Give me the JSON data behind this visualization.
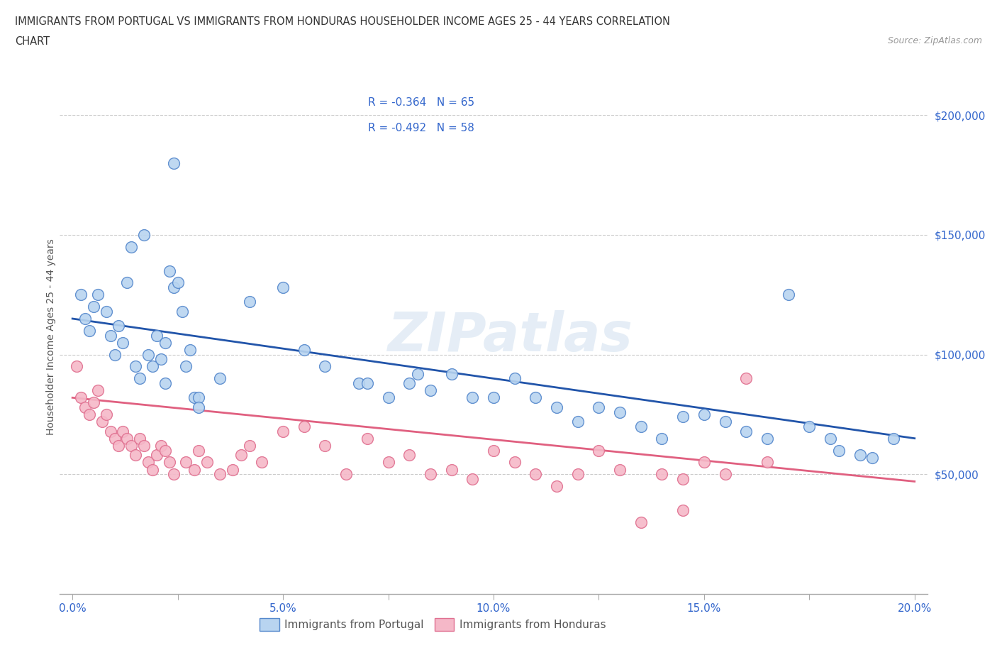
{
  "title_line1": "IMMIGRANTS FROM PORTUGAL VS IMMIGRANTS FROM HONDURAS HOUSEHOLDER INCOME AGES 25 - 44 YEARS CORRELATION",
  "title_line2": "CHART",
  "source": "Source: ZipAtlas.com",
  "ylabel": "Householder Income Ages 25 - 44 years",
  "ylim": [
    0,
    215000
  ],
  "xlim": [
    -0.3,
    20.3
  ],
  "yticks": [
    50000,
    100000,
    150000,
    200000
  ],
  "ytick_labels": [
    "$50,000",
    "$100,000",
    "$150,000",
    "$200,000"
  ],
  "xticks": [
    0.0,
    2.5,
    5.0,
    7.5,
    10.0,
    12.5,
    15.0,
    17.5,
    20.0
  ],
  "xtick_labels": [
    "0.0%",
    "",
    "5.0%",
    "",
    "10.0%",
    "",
    "15.0%",
    "",
    "20.0%"
  ],
  "portugal_color": "#b8d4f0",
  "portugal_edge_color": "#5588cc",
  "honduras_color": "#f5b8c8",
  "honduras_edge_color": "#e07090",
  "portugal_line_color": "#2255aa",
  "honduras_line_color": "#e06080",
  "R_portugal": -0.364,
  "N_portugal": 65,
  "R_honduras": -0.492,
  "N_honduras": 58,
  "legend_label_portugal": "Immigrants from Portugal",
  "legend_label_honduras": "Immigrants from Honduras",
  "watermark": "ZIPatlas",
  "port_line_y0": 115000,
  "port_line_y20": 65000,
  "hond_line_y0": 82000,
  "hond_line_y20": 47000,
  "portugal_x": [
    0.2,
    0.3,
    0.4,
    0.5,
    0.6,
    0.8,
    0.9,
    1.0,
    1.1,
    1.2,
    1.3,
    1.4,
    1.5,
    1.6,
    1.7,
    1.8,
    1.9,
    2.0,
    2.1,
    2.2,
    2.3,
    2.4,
    2.5,
    2.6,
    2.7,
    2.8,
    2.9,
    3.0,
    3.5,
    4.2,
    5.5,
    6.0,
    6.8,
    7.5,
    8.0,
    8.5,
    9.0,
    9.5,
    10.0,
    10.5,
    11.0,
    11.5,
    12.0,
    12.5,
    13.0,
    13.5,
    14.0,
    14.5,
    15.0,
    15.5,
    16.0,
    16.5,
    17.0,
    17.5,
    18.0,
    18.2,
    18.7,
    19.0,
    19.5,
    5.0,
    7.0,
    8.2,
    3.0,
    2.2,
    2.4
  ],
  "portugal_y": [
    125000,
    115000,
    110000,
    120000,
    125000,
    118000,
    108000,
    100000,
    112000,
    105000,
    130000,
    145000,
    95000,
    90000,
    150000,
    100000,
    95000,
    108000,
    98000,
    105000,
    135000,
    128000,
    130000,
    118000,
    95000,
    102000,
    82000,
    82000,
    90000,
    122000,
    102000,
    95000,
    88000,
    82000,
    88000,
    85000,
    92000,
    82000,
    82000,
    90000,
    82000,
    78000,
    72000,
    78000,
    76000,
    70000,
    65000,
    74000,
    75000,
    72000,
    68000,
    65000,
    125000,
    70000,
    65000,
    60000,
    58000,
    57000,
    65000,
    128000,
    88000,
    92000,
    78000,
    88000,
    180000
  ],
  "honduras_x": [
    0.1,
    0.2,
    0.3,
    0.4,
    0.5,
    0.6,
    0.7,
    0.8,
    0.9,
    1.0,
    1.1,
    1.2,
    1.3,
    1.4,
    1.5,
    1.6,
    1.7,
    1.8,
    1.9,
    2.0,
    2.1,
    2.2,
    2.3,
    2.4,
    2.7,
    2.9,
    3.0,
    3.2,
    3.5,
    3.8,
    4.0,
    4.2,
    4.5,
    5.0,
    5.5,
    6.0,
    6.5,
    7.0,
    7.5,
    8.0,
    8.5,
    9.0,
    9.5,
    10.0,
    10.5,
    11.0,
    11.5,
    12.0,
    12.5,
    13.0,
    13.5,
    14.0,
    14.5,
    15.0,
    15.5,
    16.0,
    16.5,
    14.5
  ],
  "honduras_y": [
    95000,
    82000,
    78000,
    75000,
    80000,
    85000,
    72000,
    75000,
    68000,
    65000,
    62000,
    68000,
    65000,
    62000,
    58000,
    65000,
    62000,
    55000,
    52000,
    58000,
    62000,
    60000,
    55000,
    50000,
    55000,
    52000,
    60000,
    55000,
    50000,
    52000,
    58000,
    62000,
    55000,
    68000,
    70000,
    62000,
    50000,
    65000,
    55000,
    58000,
    50000,
    52000,
    48000,
    60000,
    55000,
    50000,
    45000,
    50000,
    60000,
    52000,
    30000,
    50000,
    48000,
    55000,
    50000,
    90000,
    55000,
    35000
  ]
}
